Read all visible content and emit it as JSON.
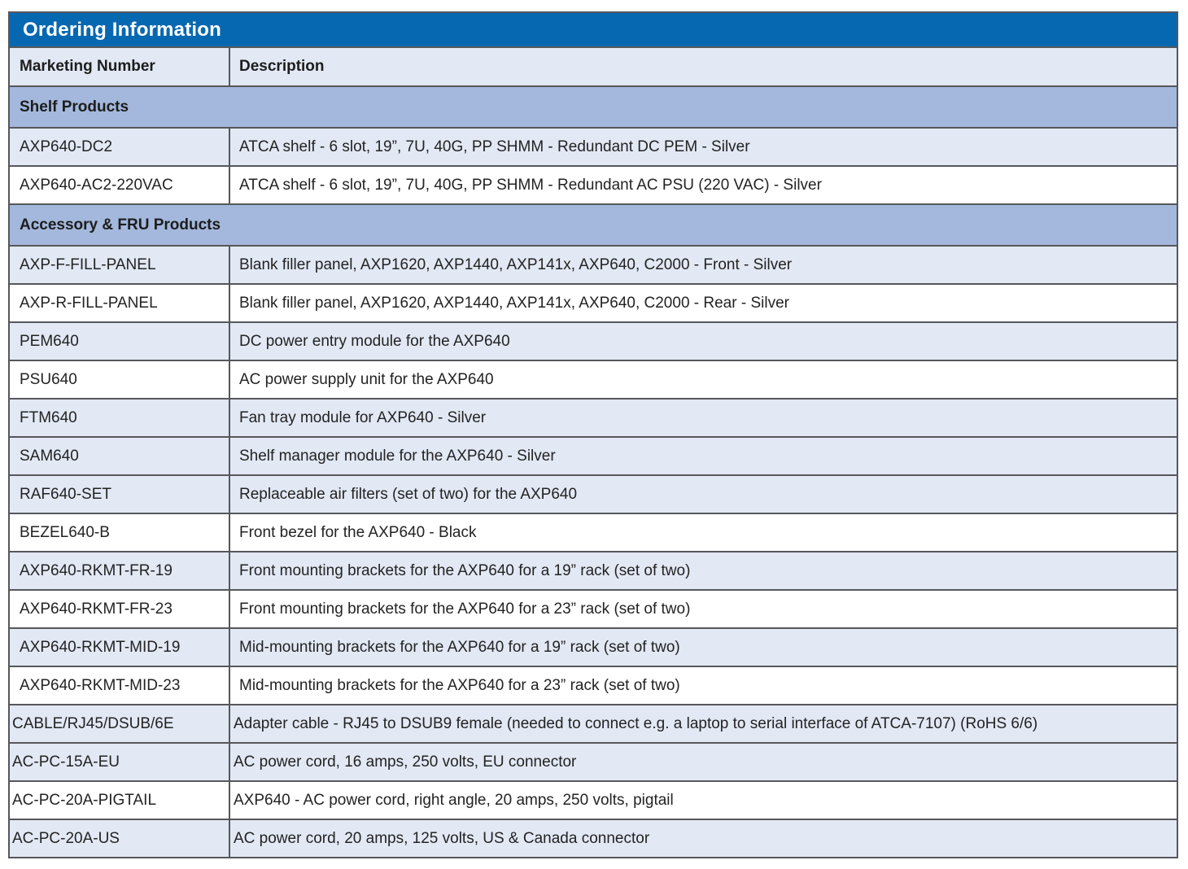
{
  "table": {
    "title": "Ordering Information",
    "columns": [
      "Marketing Number",
      "Description"
    ],
    "colors": {
      "title_bg": "#0768b2",
      "title_text": "#ffffff",
      "column_header_bg": "#e2e8f4",
      "section_header_bg": "#a3b8dc",
      "row_shaded_bg": "#e2e8f4",
      "row_plain_bg": "#ffffff",
      "border": "#56575b",
      "text": "#232323"
    },
    "sections": [
      {
        "label": "Shelf Products",
        "rows": [
          {
            "number": "AXP640-DC2",
            "description": "ATCA shelf - 6 slot, 19”, 7U, 40G, PP SHMM - Redundant DC PEM - Silver",
            "shaded": true,
            "tight": false
          },
          {
            "number": "AXP640-AC2-220VAC",
            "description": "ATCA shelf - 6 slot, 19”, 7U, 40G, PP SHMM - Redundant AC PSU (220 VAC) - Silver",
            "shaded": false,
            "tight": false
          }
        ]
      },
      {
        "label": "Accessory & FRU Products",
        "rows": [
          {
            "number": "AXP-F-FILL-PANEL",
            "description": "Blank filler panel, AXP1620, AXP1440, AXP141x, AXP640, C2000 - Front - Silver",
            "shaded": true,
            "tight": false
          },
          {
            "number": "AXP-R-FILL-PANEL",
            "description": "Blank filler panel, AXP1620, AXP1440, AXP141x, AXP640, C2000 - Rear - Silver",
            "shaded": false,
            "tight": false
          },
          {
            "number": "PEM640",
            "description": "DC power entry module for the AXP640",
            "shaded": true,
            "tight": false
          },
          {
            "number": "PSU640",
            "description": "AC power supply unit for the AXP640",
            "shaded": false,
            "tight": false
          },
          {
            "number": "FTM640",
            "description": "Fan tray module for AXP640 - Silver",
            "shaded": true,
            "tight": false
          },
          {
            "number": "SAM640",
            "description": "Shelf manager module for the AXP640 - Silver",
            "shaded": true,
            "tight": false
          },
          {
            "number": "RAF640-SET",
            "description": "Replaceable air filters (set of two) for the AXP640",
            "shaded": true,
            "tight": false
          },
          {
            "number": "BEZEL640-B",
            "description": "Front bezel for the AXP640 - Black",
            "shaded": false,
            "tight": false
          },
          {
            "number": "AXP640-RKMT-FR-19",
            "description": "Front mounting brackets for the AXP640 for a 19” rack (set of two)",
            "shaded": true,
            "tight": false
          },
          {
            "number": "AXP640-RKMT-FR-23",
            "description": "Front mounting brackets for the AXP640 for a 23” rack (set of two)",
            "shaded": false,
            "tight": false
          },
          {
            "number": "AXP640-RKMT-MID-19",
            "description": "Mid-mounting brackets for the AXP640 for a 19” rack (set of two)",
            "shaded": true,
            "tight": false
          },
          {
            "number": "AXP640-RKMT-MID-23",
            "description": "Mid-mounting brackets for the AXP640 for a 23” rack (set of two)",
            "shaded": false,
            "tight": false
          },
          {
            "number": "CABLE/RJ45/DSUB/6E",
            "description": "Adapter cable - RJ45 to DSUB9 female (needed to connect e.g. a laptop to serial interface of ATCA-7107) (RoHS 6/6)",
            "shaded": true,
            "tight": true
          },
          {
            "number": "AC-PC-15A-EU",
            "description": "AC power cord, 16 amps, 250 volts, EU connector",
            "shaded": true,
            "tight": true
          },
          {
            "number": "AC-PC-20A-PIGTAIL",
            "description": "AXP640 - AC power cord, right angle, 20 amps, 250 volts, pigtail",
            "shaded": false,
            "tight": true
          },
          {
            "number": "AC-PC-20A-US",
            "description": "AC power cord, 20 amps, 125 volts, US & Canada connector",
            "shaded": true,
            "tight": true
          }
        ]
      }
    ]
  }
}
